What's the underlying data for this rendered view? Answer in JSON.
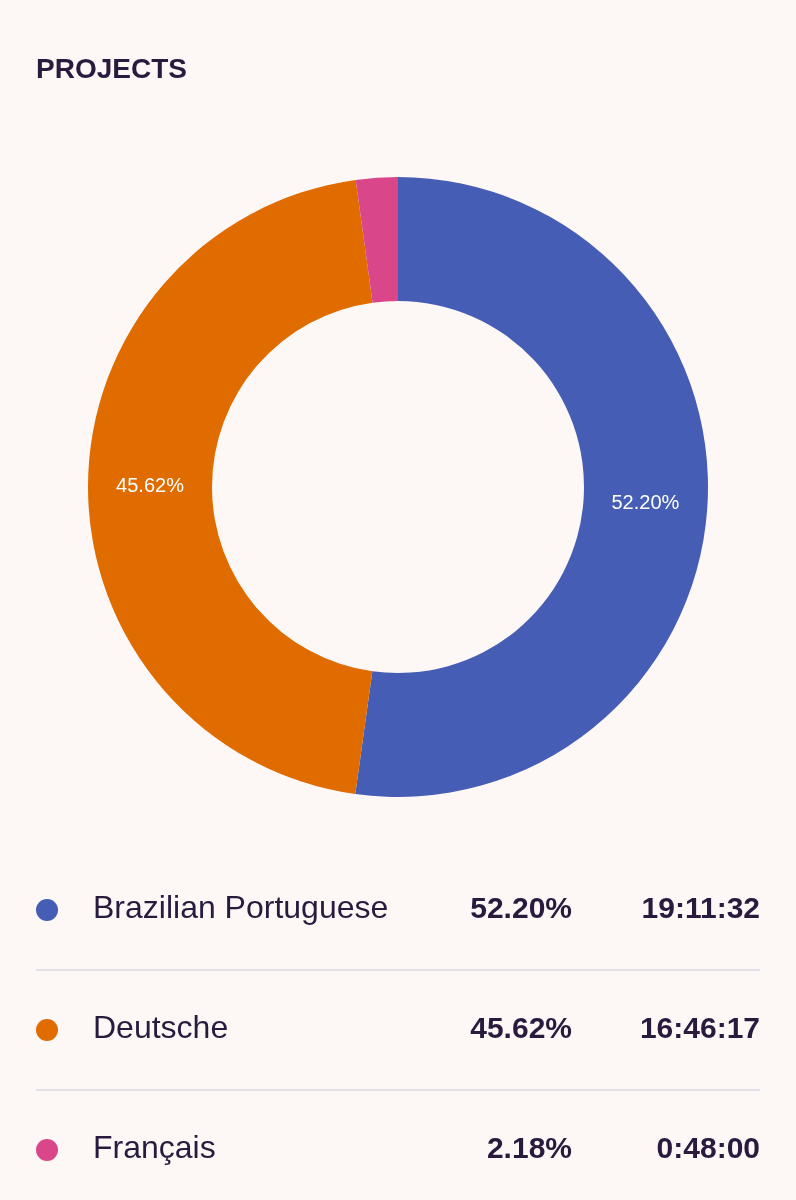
{
  "chart_data": {
    "type": "donut",
    "title": "PROJECTS",
    "categories": [
      "Brazilian Portuguese",
      "Deutsche",
      "Français"
    ],
    "values": [
      52.2,
      45.62,
      2.18
    ],
    "colors": [
      "#455db5",
      "#e06c00",
      "#d9468a"
    ],
    "value_labels": [
      "52.20%",
      "45.62%",
      "2.18%"
    ],
    "annotations": [
      "19:11:32",
      "16:46:17",
      "0:48:00"
    ],
    "legend": "bottom"
  }
}
